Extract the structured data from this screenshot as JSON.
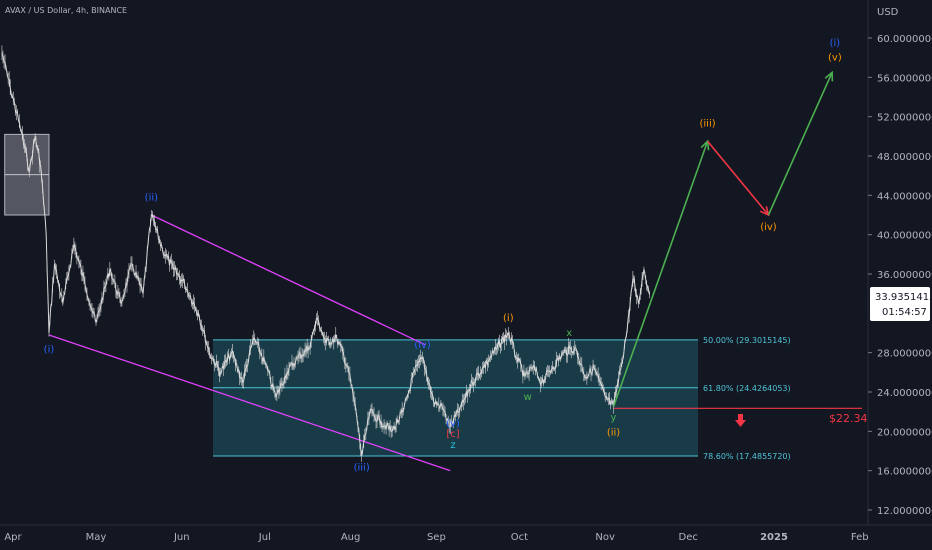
{
  "header": {
    "title": "AVAX / US Dollar, 4h, BINANCE",
    "currency": "USD"
  },
  "price_box": {
    "price": "33.9351415",
    "countdown": "01:54:57"
  },
  "target_label": "$22.34",
  "colors": {
    "background": "#131722",
    "candles": "#d8d8d8",
    "channel": "#e040fb",
    "zone": "#1f5a66",
    "zone_border": "#4fc3d7",
    "arrow_up": "#4caf50",
    "arrow_down": "#f23645",
    "wave_blue": "#2962ff",
    "wave_orange": "#ff9800",
    "wave_green": "#4caf50",
    "wave_cyan": "#26c6da",
    "wave_red": "#f23645"
  },
  "chart_data": {
    "type": "line",
    "title": "AVAX / US Dollar, 4h, BINANCE",
    "xlabel": "",
    "ylabel": "",
    "ylim": [
      11,
      64
    ],
    "y_ticks": [
      "60.0000000",
      "56.0000000",
      "52.0000000",
      "48.0000000",
      "44.0000000",
      "40.0000000",
      "36.0000000",
      "28.0000000",
      "24.0000000",
      "20.0000000",
      "16.0000000",
      "12.0000000"
    ],
    "x_ticks": [
      {
        "label": "Apr",
        "x": "2024-04-01"
      },
      {
        "label": "May",
        "x": "2024-05-01"
      },
      {
        "label": "Jun",
        "x": "2024-06-01"
      },
      {
        "label": "Jul",
        "x": "2024-07-01"
      },
      {
        "label": "Aug",
        "x": "2024-08-01"
      },
      {
        "label": "Sep",
        "x": "2024-09-01"
      },
      {
        "label": "Oct",
        "x": "2024-10-01"
      },
      {
        "label": "Nov",
        "x": "2024-11-01"
      },
      {
        "label": "Dec",
        "x": "2024-12-01"
      },
      {
        "label": "2025",
        "x": "2025-01-01"
      },
      {
        "label": "Feb",
        "x": "2025-02-01"
      }
    ],
    "series": [
      {
        "values": [
          {
            "x": "2024-03-28",
            "y": 58.5
          },
          {
            "x": "2024-03-31",
            "y": 55.0
          },
          {
            "x": "2024-04-04",
            "y": 50.5
          },
          {
            "x": "2024-04-07",
            "y": 46.5
          },
          {
            "x": "2024-04-09",
            "y": 50.0
          },
          {
            "x": "2024-04-11",
            "y": 47.0
          },
          {
            "x": "2024-04-13",
            "y": 40.0
          },
          {
            "x": "2024-04-14",
            "y": 30.0
          },
          {
            "x": "2024-04-16",
            "y": 37.0
          },
          {
            "x": "2024-04-19",
            "y": 33.0
          },
          {
            "x": "2024-04-23",
            "y": 39.0
          },
          {
            "x": "2024-04-27",
            "y": 35.0
          },
          {
            "x": "2024-05-01",
            "y": 31.0
          },
          {
            "x": "2024-05-06",
            "y": 36.5
          },
          {
            "x": "2024-05-10",
            "y": 33.0
          },
          {
            "x": "2024-05-14",
            "y": 37.0
          },
          {
            "x": "2024-05-18",
            "y": 34.0
          },
          {
            "x": "2024-05-21",
            "y": 42.0
          },
          {
            "x": "2024-05-25",
            "y": 38.5
          },
          {
            "x": "2024-05-29",
            "y": 36.5
          },
          {
            "x": "2024-06-02",
            "y": 35.0
          },
          {
            "x": "2024-06-07",
            "y": 32.0
          },
          {
            "x": "2024-06-11",
            "y": 28.0
          },
          {
            "x": "2024-06-15",
            "y": 26.0
          },
          {
            "x": "2024-06-19",
            "y": 28.0
          },
          {
            "x": "2024-06-23",
            "y": 25.0
          },
          {
            "x": "2024-06-27",
            "y": 29.5
          },
          {
            "x": "2024-07-01",
            "y": 27.0
          },
          {
            "x": "2024-07-05",
            "y": 23.5
          },
          {
            "x": "2024-07-09",
            "y": 26.0
          },
          {
            "x": "2024-07-13",
            "y": 27.5
          },
          {
            "x": "2024-07-17",
            "y": 28.5
          },
          {
            "x": "2024-07-20",
            "y": 31.5
          },
          {
            "x": "2024-07-23",
            "y": 29.0
          },
          {
            "x": "2024-07-27",
            "y": 29.5
          },
          {
            "x": "2024-07-31",
            "y": 26.5
          },
          {
            "x": "2024-08-03",
            "y": 22.0
          },
          {
            "x": "2024-08-05",
            "y": 17.5
          },
          {
            "x": "2024-08-08",
            "y": 22.0
          },
          {
            "x": "2024-08-12",
            "y": 21.0
          },
          {
            "x": "2024-08-16",
            "y": 20.0
          },
          {
            "x": "2024-08-20",
            "y": 22.0
          },
          {
            "x": "2024-08-24",
            "y": 26.0
          },
          {
            "x": "2024-08-27",
            "y": 27.5
          },
          {
            "x": "2024-08-31",
            "y": 23.0
          },
          {
            "x": "2024-09-03",
            "y": 22.5
          },
          {
            "x": "2024-09-06",
            "y": 20.5
          },
          {
            "x": "2024-09-10",
            "y": 22.5
          },
          {
            "x": "2024-09-14",
            "y": 25.0
          },
          {
            "x": "2024-09-18",
            "y": 26.5
          },
          {
            "x": "2024-09-23",
            "y": 28.5
          },
          {
            "x": "2024-09-27",
            "y": 30.0
          },
          {
            "x": "2024-09-30",
            "y": 27.5
          },
          {
            "x": "2024-10-03",
            "y": 25.5
          },
          {
            "x": "2024-10-06",
            "y": 26.5
          },
          {
            "x": "2024-10-09",
            "y": 25.0
          },
          {
            "x": "2024-10-13",
            "y": 26.5
          },
          {
            "x": "2024-10-17",
            "y": 28.0
          },
          {
            "x": "2024-10-21",
            "y": 28.5
          },
          {
            "x": "2024-10-25",
            "y": 25.5
          },
          {
            "x": "2024-10-28",
            "y": 26.5
          },
          {
            "x": "2024-11-01",
            "y": 23.5
          },
          {
            "x": "2024-11-04",
            "y": 22.5
          },
          {
            "x": "2024-11-07",
            "y": 27.0
          },
          {
            "x": "2024-11-09",
            "y": 30.5
          },
          {
            "x": "2024-11-11",
            "y": 35.5
          },
          {
            "x": "2024-11-13",
            "y": 33.0
          },
          {
            "x": "2024-11-15",
            "y": 36.5
          },
          {
            "x": "2024-11-17",
            "y": 33.9
          }
        ]
      }
    ],
    "fib_levels": [
      {
        "label": "50.00% (29.3015145)",
        "value": 29.3015145
      },
      {
        "label": "61.80% (24.4264053)",
        "value": 24.4264053
      },
      {
        "label": "78.60% (17.4855720)",
        "value": 17.485572
      }
    ],
    "horizontal_level": 22.34,
    "channel": [
      [
        {
          "x": "2024-05-21",
          "y": 42.0
        },
        {
          "x": "2024-08-28",
          "y": 28.8
        }
      ],
      [
        {
          "x": "2024-04-14",
          "y": 29.8
        },
        {
          "x": "2024-09-06",
          "y": 16.0
        }
      ]
    ],
    "consolidation_box": {
      "x0": "2024-03-29",
      "x1": "2024-04-14",
      "y0": 42.0,
      "y1": 50.2
    },
    "projection_up": [
      {
        "x": "2024-11-04",
        "y": 22.5
      },
      {
        "x": "2024-12-08",
        "y": 49.5
      }
    ],
    "projection_down": [
      {
        "x": "2024-12-08",
        "y": 49.5
      },
      {
        "x": "2024-12-30",
        "y": 42.0
      }
    ],
    "projection_final": [
      {
        "x": "2024-12-30",
        "y": 42.0
      },
      {
        "x": "2025-01-22",
        "y": 56.5
      }
    ],
    "wave_labels": [
      {
        "text": "(i)",
        "x": "2024-04-14",
        "y": 28.0,
        "color": "#2962ff"
      },
      {
        "text": "(ii)",
        "x": "2024-05-21",
        "y": 43.5,
        "color": "#2962ff"
      },
      {
        "text": "(iii)",
        "x": "2024-08-05",
        "y": 16.0,
        "color": "#2962ff"
      },
      {
        "text": "(iv)",
        "x": "2024-08-27",
        "y": 28.5,
        "color": "#2962ff"
      },
      {
        "text": "(v)",
        "x": "2024-09-07",
        "y": 20.5,
        "color": "#2962ff"
      },
      {
        "text": "[c]",
        "x": "2024-09-07",
        "y": 19.4,
        "color": "#f23645"
      },
      {
        "text": "z",
        "x": "2024-09-07",
        "y": 18.3,
        "color": "#26c6da"
      },
      {
        "text": "(i)",
        "x": "2024-09-27",
        "y": 31.2,
        "color": "#ff9800"
      },
      {
        "text": "w",
        "x": "2024-10-04",
        "y": 23.2,
        "color": "#4caf50"
      },
      {
        "text": "x",
        "x": "2024-10-19",
        "y": 29.7,
        "color": "#4caf50"
      },
      {
        "text": "y",
        "x": "2024-11-04",
        "y": 21.1,
        "color": "#4caf50"
      },
      {
        "text": "(ii)",
        "x": "2024-11-04",
        "y": 19.6,
        "color": "#ff9800"
      },
      {
        "text": "(iii)",
        "x": "2024-12-08",
        "y": 51.0,
        "color": "#ff9800"
      },
      {
        "text": "(iv)",
        "x": "2024-12-30",
        "y": 40.5,
        "color": "#ff9800"
      },
      {
        "text": "(i)",
        "x": "2025-01-23",
        "y": 59.2,
        "color": "#2962ff"
      },
      {
        "text": "(v)",
        "x": "2025-01-23",
        "y": 57.7,
        "color": "#ff9800"
      }
    ]
  }
}
